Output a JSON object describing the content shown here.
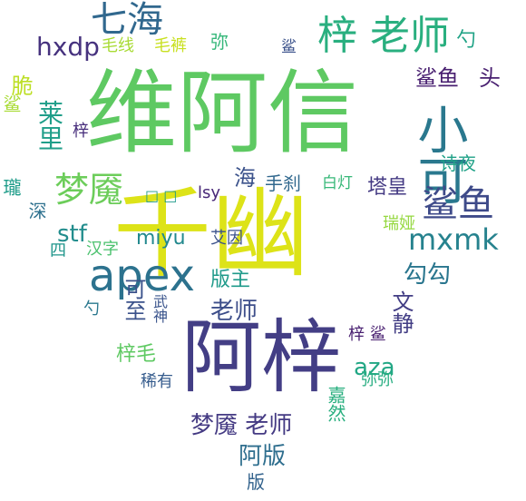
{
  "words": [
    {
      "text": "维阿信",
      "color": "#5ec962"
    },
    {
      "text": "千幽",
      "color": "#dde318"
    },
    {
      "text": "阿梓",
      "color": "#433e85"
    },
    {
      "text": "小可",
      "color": "#2a788e"
    },
    {
      "text": "梓 老师",
      "color": "#29af7f"
    },
    {
      "text": "七海",
      "color": "#31688e"
    },
    {
      "text": "梦魇",
      "color": "#6ccd5a"
    },
    {
      "text": "鲨鱼",
      "color": "#3e4a89"
    },
    {
      "text": "apex",
      "color": "#2c728e"
    },
    {
      "text": "mxmk",
      "color": "#26828e"
    },
    {
      "text": "hxdp",
      "color": "#46327e"
    },
    {
      "text": "毛线",
      "color": "#a8db34"
    },
    {
      "text": "毛裤",
      "color": "#c8e020"
    },
    {
      "text": "弥",
      "color": "#35b779"
    },
    {
      "text": "勺",
      "color": "#20a386"
    },
    {
      "text": "鲨",
      "color": "#3b528b"
    },
    {
      "text": "脆",
      "color": "#bddf26"
    },
    {
      "text": "莱里",
      "color": "#1f9e89"
    },
    {
      "text": "鲨鱼",
      "color": "#481f70"
    },
    {
      "text": "头",
      "color": "#481f70"
    },
    {
      "text": "梓",
      "color": "#472d7b"
    },
    {
      "text": "鲨",
      "color": "#a8db34"
    },
    {
      "text": "□ □",
      "color": "#1f9a8a"
    },
    {
      "text": "lsy",
      "color": "#482878"
    },
    {
      "text": "海",
      "color": "#3b528b"
    },
    {
      "text": "手刹",
      "color": "#31688e"
    },
    {
      "text": "白灯",
      "color": "#37b878"
    },
    {
      "text": "塔皇",
      "color": "#443a83"
    },
    {
      "text": "诗夜",
      "color": "#1fa187"
    },
    {
      "text": "瓏",
      "color": "#1e9c89"
    },
    {
      "text": "深",
      "color": "#2d708e"
    },
    {
      "text": "stf",
      "color": "#228d8d"
    },
    {
      "text": "miyu",
      "color": "#23898e"
    },
    {
      "text": "艾因",
      "color": "#3b528b"
    },
    {
      "text": "瑞娅",
      "color": "#95d840"
    },
    {
      "text": "四",
      "color": "#1f958b"
    },
    {
      "text": "汉字",
      "color": "#4ac16d"
    },
    {
      "text": "勾勾",
      "color": "#2a768e"
    },
    {
      "text": "版主",
      "color": "#1f9a8a"
    },
    {
      "text": "可至",
      "color": "#3b528b"
    },
    {
      "text": "武神",
      "color": "#3a548c"
    },
    {
      "text": "老师",
      "color": "#3d4e8a"
    },
    {
      "text": "文静",
      "color": "#433e85"
    },
    {
      "text": "勺",
      "color": "#2a788e"
    },
    {
      "text": "梓 鲨",
      "color": "#481f70"
    },
    {
      "text": "梓毛",
      "color": "#5ec962"
    },
    {
      "text": "aza",
      "color": "#22a785"
    },
    {
      "text": "稀有",
      "color": "#365c8d"
    },
    {
      "text": "弥弥",
      "color": "#27ad81"
    },
    {
      "text": "梦魇 老师",
      "color": "#443a83"
    },
    {
      "text": "嘉然",
      "color": "#29af7f"
    },
    {
      "text": "阿版",
      "color": "#2e6e8e"
    },
    {
      "text": "版",
      "color": "#33638d"
    }
  ]
}
